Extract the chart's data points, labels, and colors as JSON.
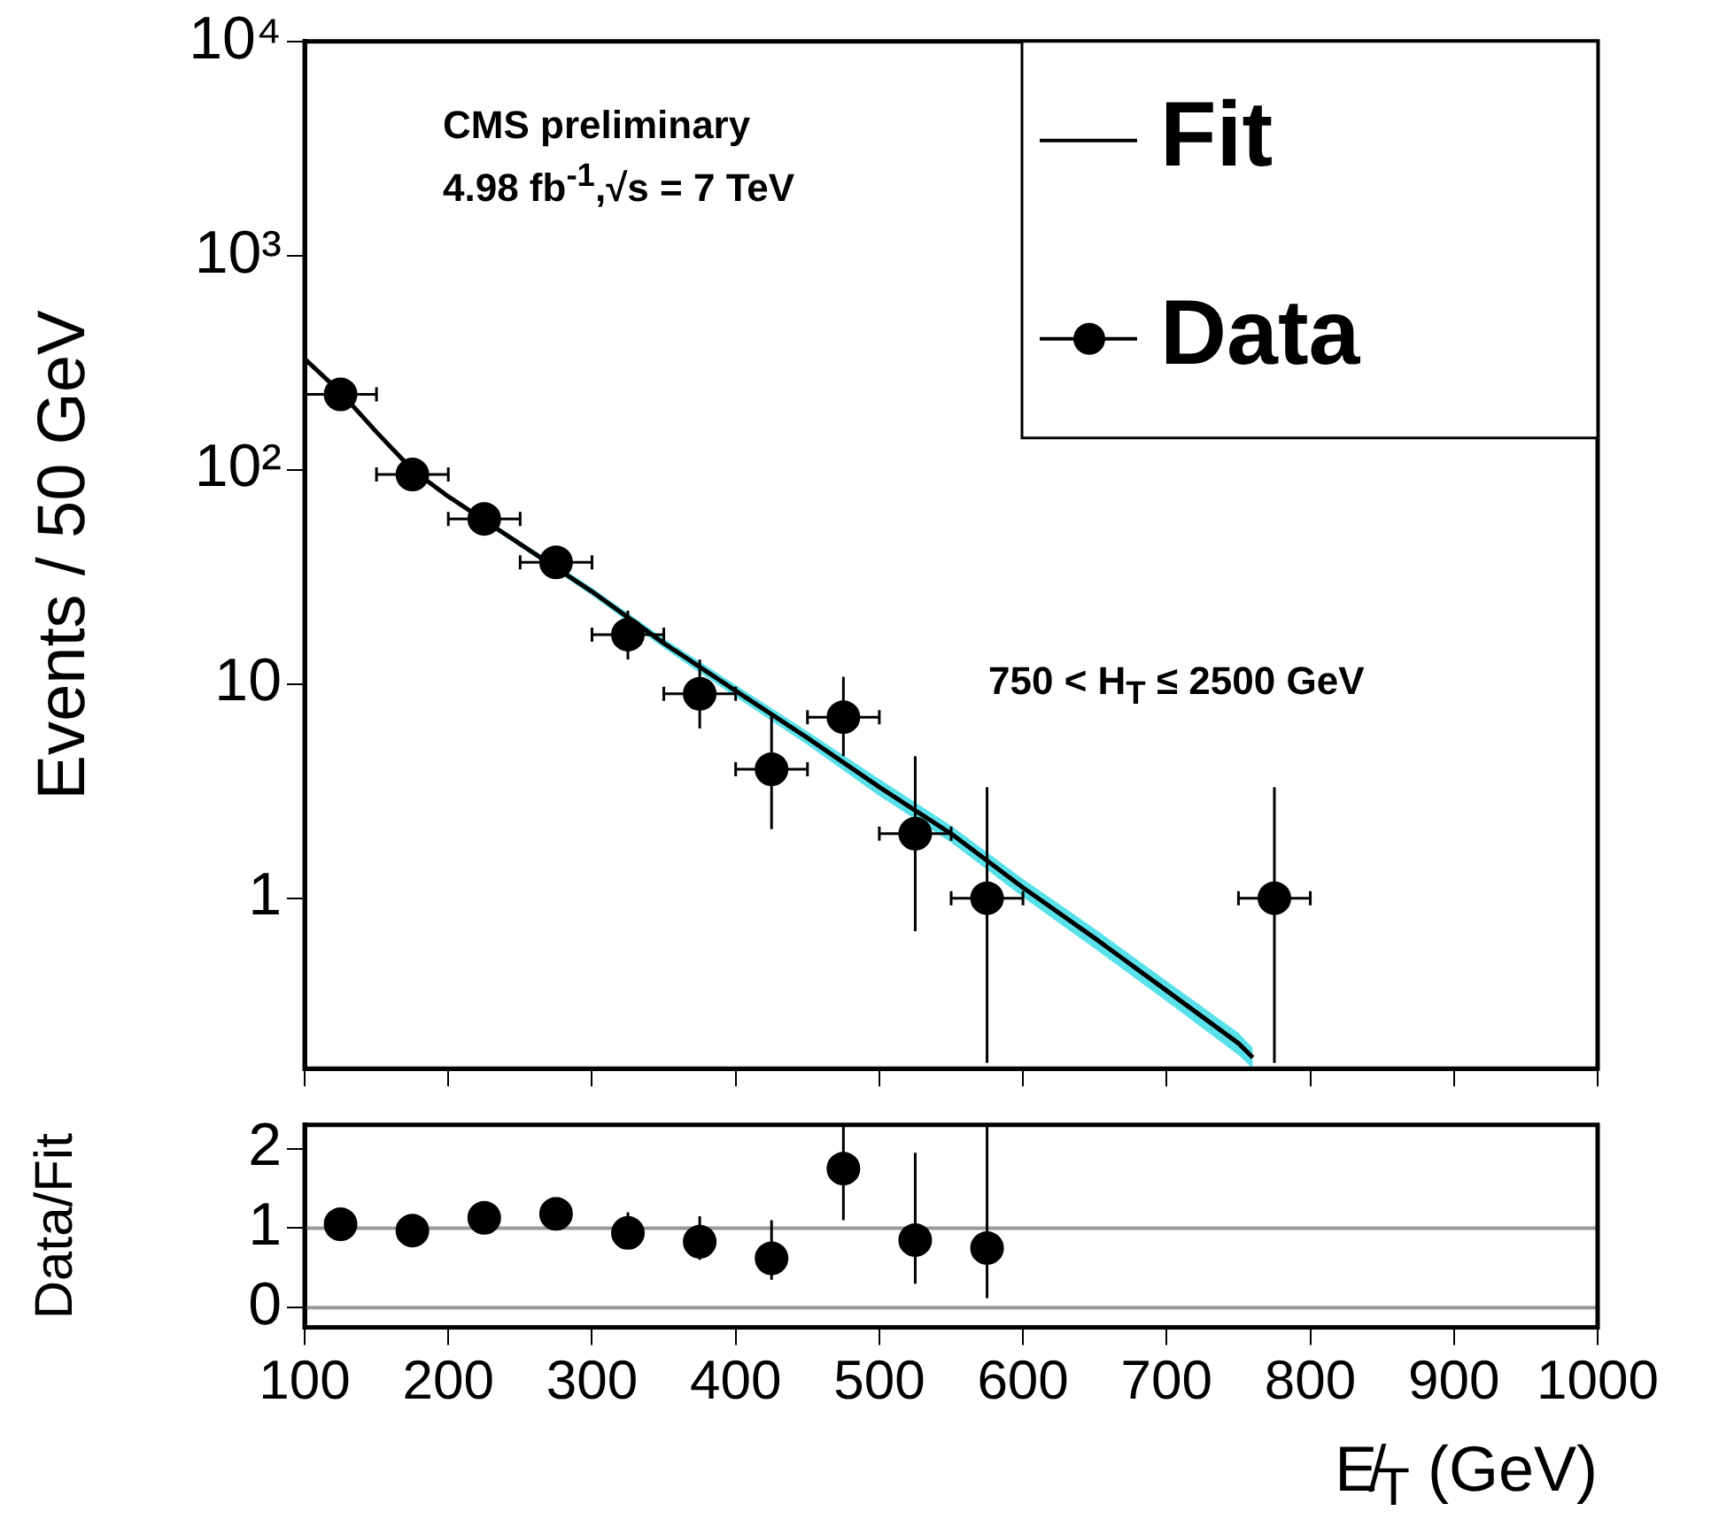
{
  "chart_data": [
    {
      "type": "scatter",
      "ylabel": "Events / 50 GeV",
      "annotations": [
        "CMS preliminary",
        "4.98 fb$^{-1}$,√s = 7 TeV",
        "750 < H$_{T}$ ≤ 2500 GeV"
      ],
      "log": "y",
      "xlim": [
        100,
        1000
      ],
      "xticks": [
        100,
        200,
        300,
        400,
        500,
        600,
        700,
        800,
        900,
        1000
      ],
      "ylim": [
        0.16,
        10000
      ],
      "yticks": [
        1,
        10,
        {
          "value": 100,
          "label": "10²"
        },
        {
          "value": 1000,
          "label": "10³"
        },
        {
          "value": 10000,
          "label": "10⁴"
        }
      ],
      "tick_labels": "y",
      "grid": false,
      "legend": "top right",
      "marker": "circle",
      "series": [
        {
          "name": "Fit",
          "type": "line",
          "marker": "none",
          "color": "#000000",
          "x": [
            100,
            125,
            150,
            175,
            200,
            250,
            300,
            350,
            400,
            450,
            500,
            550,
            600,
            650,
            700,
            750,
            760
          ],
          "values": [
            330,
            230,
            150,
            100,
            75,
            45,
            27,
            15.5,
            9.3,
            5.6,
            3.3,
            2.0,
            1.12,
            0.65,
            0.37,
            0.21,
            0.18
          ],
          "lower": [
            323,
            225,
            147,
            98,
            73.5,
            43.7,
            25.9,
            14.7,
            8.7,
            5.2,
            3.0,
            1.82,
            1.01,
            0.58,
            0.33,
            0.185,
            0.16
          ],
          "upper": [
            337,
            235,
            153,
            102,
            76.5,
            46.4,
            28.1,
            16.3,
            9.9,
            6.0,
            3.6,
            2.18,
            1.23,
            0.72,
            0.41,
            0.235,
            0.2
          ]
        },
        {
          "name": "Data",
          "color": "#000000",
          "x": [
            125,
            175,
            225,
            275,
            325,
            375,
            425,
            475,
            525,
            575,
            775
          ],
          "values": [
            225,
            95,
            59,
            37,
            17,
            9,
            4,
            7,
            2,
            1,
            1
          ],
          "errors": [
            null,
            null,
            [
              51,
              67
            ],
            [
              31,
              43
            ],
            [
              13,
              22
            ],
            [
              6.2,
              13
            ],
            [
              2.1,
              7.2
            ],
            [
              4.6,
              10.8
            ],
            [
              0.7,
              4.6
            ],
            [
              0.17,
              3.3
            ],
            [
              0.17,
              3.3
            ]
          ],
          "xerrors": [
            25,
            25,
            25,
            25,
            25,
            25,
            25,
            25,
            25,
            25,
            25
          ]
        }
      ]
    },
    {
      "type": "scatter",
      "ylabel": "Data/Fit",
      "xlabel": "E̸$_{T}$ (GeV)",
      "xlim": [
        100,
        1000
      ],
      "xticks": [
        100,
        200,
        300,
        400,
        500,
        600,
        700,
        800,
        900,
        1000
      ],
      "ylim": [
        -0.25,
        2.3
      ],
      "yticks": [
        0,
        1,
        2
      ],
      "grid": false,
      "marker": "circle",
      "ref_lines": [
        {
          "axis": "y",
          "value": 1,
          "color": "#999999"
        },
        {
          "axis": "y",
          "value": 0,
          "color": "#999999"
        }
      ],
      "series": [
        {
          "color": "#000000",
          "x": [
            125,
            175,
            225,
            275,
            325,
            375,
            425,
            475,
            525,
            575
          ],
          "values": [
            1.05,
            0.97,
            1.13,
            1.18,
            0.94,
            0.83,
            0.62,
            1.75,
            0.85,
            0.75
          ],
          "errors": [
            null,
            null,
            null,
            [
              1.03,
              1.35
            ],
            [
              0.75,
              1.2
            ],
            [
              0.6,
              1.15
            ],
            [
              0.35,
              1.1
            ],
            [
              1.1,
              2.3
            ],
            [
              0.3,
              1.95
            ],
            [
              0.12,
              2.3
            ]
          ]
        }
      ]
    }
  ]
}
